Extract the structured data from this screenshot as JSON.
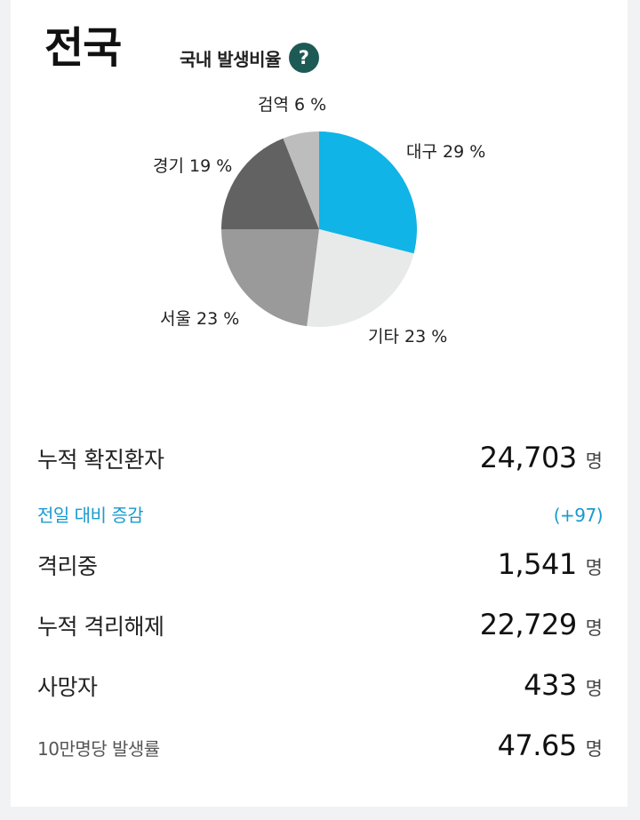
{
  "header": {
    "title": "전국",
    "subtitle": "국내 발생비율",
    "help_label": "?"
  },
  "pie": {
    "slices": [
      {
        "label": "대구 29 %",
        "value": 29,
        "color": "#10b4e6"
      },
      {
        "label": "기타 23 %",
        "value": 23,
        "color": "#e8e9e9"
      },
      {
        "label": "서울 23 %",
        "value": 23,
        "color": "#9a9a9a"
      },
      {
        "label": "경기 19 %",
        "value": 19,
        "color": "#626262"
      },
      {
        "label": "검역 6 %",
        "value": 6,
        "color": "#bdbdbd"
      }
    ]
  },
  "stats": {
    "total_label": "누적 확진환자",
    "total_value": "24,703",
    "delta_label": "전일 대비 증감",
    "delta_value": "(+97)",
    "isolating_label": "격리중",
    "isolating_value": "1,541",
    "released_label": "누적 격리해제",
    "released_value": "22,729",
    "deaths_label": "사망자",
    "deaths_value": "433",
    "rate_label": "10만명당 발생률",
    "rate_value": "47.65",
    "unit": "명"
  }
}
